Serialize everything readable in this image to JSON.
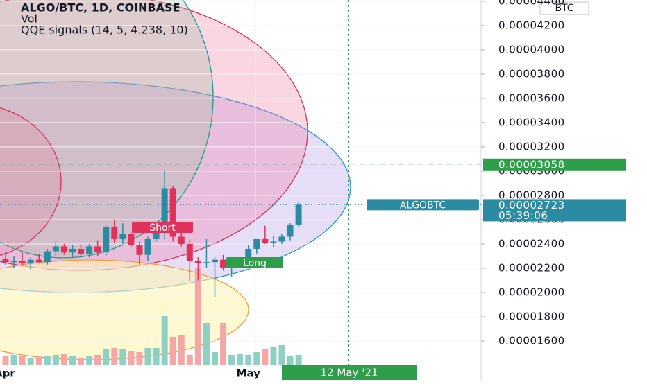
{
  "header": {
    "title": "ALGO/BTC, 1D, COINBASE",
    "volume": "Vol",
    "indicator": "QQE signals (14, 5, 4.238, 10)"
  },
  "chart_data": {
    "type": "candlestick",
    "categories": [
      "Apr",
      null,
      null,
      null,
      null,
      null,
      null,
      null,
      null,
      null,
      null,
      null,
      null,
      null,
      null,
      null,
      null,
      null,
      null,
      null,
      null,
      null,
      null,
      null,
      null,
      null,
      null,
      null,
      null,
      "May",
      null,
      null,
      null,
      null,
      null,
      null
    ],
    "open": [
      2.28e-05,
      2.25e-05,
      2.26e-05,
      2.24e-05,
      2.27e-05,
      2.25e-05,
      2.34e-05,
      2.38e-05,
      2.33e-05,
      2.36e-05,
      2.32e-05,
      2.38e-05,
      2.33e-05,
      2.54e-05,
      2.44e-05,
      2.48e-05,
      2.39e-05,
      2.31e-05,
      2.44e-05,
      2.5e-05,
      2.86e-05,
      2.46e-05,
      2.4e-05,
      2.26e-05,
      2.24e-05,
      2.25e-05,
      2.27e-05,
      2.2e-05,
      2.25e-05,
      2.28e-05,
      2.36e-05,
      2.44e-05,
      2.41e-05,
      2.42e-05,
      2.46e-05,
      2.56e-05
    ],
    "high": [
      2.33e-05,
      2.3e-05,
      2.33e-05,
      2.29e-05,
      2.32e-05,
      2.36e-05,
      2.42e-05,
      2.4e-05,
      2.39e-05,
      2.4e-05,
      2.4e-05,
      2.43e-05,
      2.56e-05,
      2.6e-05,
      2.57e-05,
      2.5e-05,
      2.42e-05,
      2.46e-05,
      2.52e-05,
      3e-05,
      2.88e-05,
      2.53e-05,
      2.44e-05,
      2.29e-05,
      2.44e-05,
      2.29e-05,
      2.31e-05,
      2.27e-05,
      2.29e-05,
      2.39e-05,
      2.44e-05,
      2.55e-05,
      2.47e-05,
      2.48e-05,
      2.57e-05,
      2.74e-05
    ],
    "low": [
      2.23e-05,
      2.2e-05,
      2.22e-05,
      2.19e-05,
      2.24e-05,
      2.23e-05,
      2.3e-05,
      2.31e-05,
      2.29e-05,
      2.3e-05,
      2.29e-05,
      2.3e-05,
      2.3e-05,
      2.41e-05,
      2.4e-05,
      2.37e-05,
      2.23e-05,
      2.26e-05,
      2.42e-05,
      2.44e-05,
      2.42e-05,
      2.38e-05,
      2.09e-05,
      2.1e-05,
      2.2e-05,
      1.96e-05,
      2.18e-05,
      2.13e-05,
      2.2e-05,
      2.25e-05,
      2.32e-05,
      2.4e-05,
      2.37e-05,
      2.4e-05,
      2.43e-05,
      2.54e-05
    ],
    "close": [
      2.25e-05,
      2.26e-05,
      2.24e-05,
      2.27e-05,
      2.25e-05,
      2.34e-05,
      2.38e-05,
      2.33e-05,
      2.36e-05,
      2.32e-05,
      2.38e-05,
      2.33e-05,
      2.54e-05,
      2.44e-05,
      2.48e-05,
      2.39e-05,
      2.31e-05,
      2.44e-05,
      2.5e-05,
      2.86e-05,
      2.46e-05,
      2.4e-05,
      2.26e-05,
      2.24e-05,
      2.25e-05,
      2.27e-05,
      2.2e-05,
      2.25e-05,
      2.28e-05,
      2.36e-05,
      2.44e-05,
      2.41e-05,
      2.42e-05,
      2.46e-05,
      2.56e-05,
      2.723e-05
    ],
    "volume": [
      12,
      14,
      12,
      10,
      12,
      12,
      14,
      16,
      12,
      10,
      12,
      14,
      22,
      24,
      22,
      20,
      18,
      24,
      24,
      70,
      40,
      42,
      14,
      140,
      60,
      18,
      60,
      14,
      16,
      14,
      18,
      22,
      26,
      28,
      12,
      14
    ],
    "up_color": "#2b8ba3",
    "down_color": "#e0315b",
    "up_volume_color": "#8fd0c4",
    "down_volume_color": "#f4a7a5",
    "ylim": [
      1.394e-05,
      4.411e-05
    ],
    "yticks": [
      {
        "value": 1.6e-05,
        "label": "0.00001600"
      },
      {
        "value": 1.8e-05,
        "label": "0.00001800"
      },
      {
        "value": 2e-05,
        "label": "0.00002000"
      },
      {
        "value": 2.2e-05,
        "label": "0.00002200"
      },
      {
        "value": 2.4e-05,
        "label": "0.00002400"
      },
      {
        "value": 2.6e-05,
        "label": "0.00002600"
      },
      {
        "value": 2.8e-05,
        "label": "0.00002800"
      },
      {
        "value": 3e-05,
        "label": "0.00003000"
      },
      {
        "value": 3.2e-05,
        "label": "0.00003200"
      },
      {
        "value": 3.4e-05,
        "label": "0.00003400"
      },
      {
        "value": 3.6e-05,
        "label": "0.00003600"
      },
      {
        "value": 3.8e-05,
        "label": "0.00003800"
      },
      {
        "value": 4e-05,
        "label": "0.00004000"
      },
      {
        "value": 4.2e-05,
        "label": "0.00004200"
      },
      {
        "value": 4.4e-05,
        "label": "0.00004400"
      }
    ],
    "currency": "BTC",
    "crosshair_price": {
      "value": 3.058e-05,
      "label": "0.00003058"
    },
    "crosshair_date": "12 May '21",
    "last_price": {
      "symbol": "ALGOBTC",
      "value": 2.723e-05,
      "label": "0.00002723",
      "countdown": "05:39:06"
    },
    "annotations": [
      "Short",
      "Long"
    ]
  }
}
